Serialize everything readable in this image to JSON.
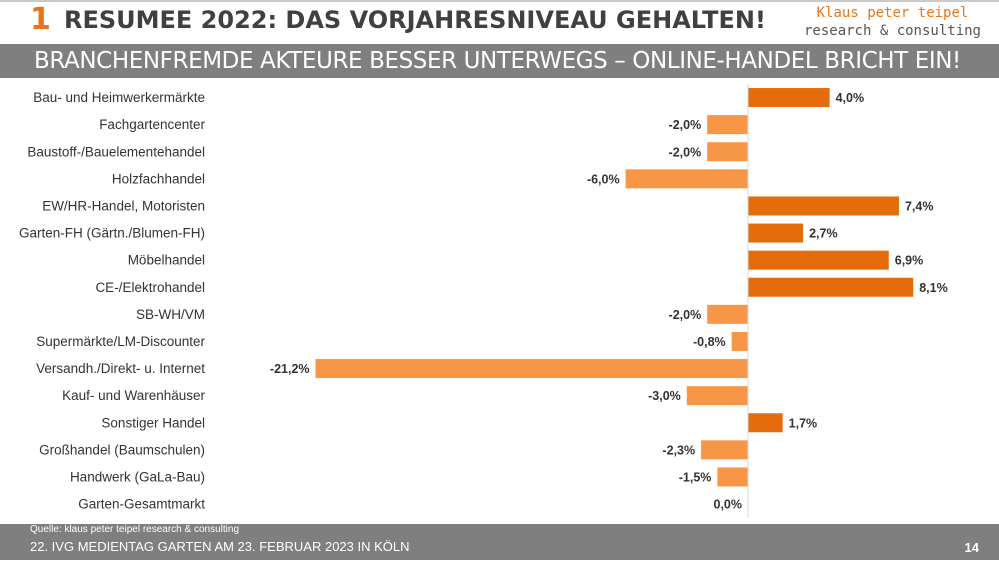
{
  "header": {
    "number": "1",
    "title": "RESUMEE 2022: DAS VORJAHRESNIVEAU GEHALTEN!",
    "logo_name": "Klaus peter teipel",
    "logo_tagline": "research & consulting"
  },
  "subtitle": "BRANCHENFREMDE AKTEURE BESSER UNTERWEGS – ONLINE-HANDEL BRICHT EIN!",
  "colors": {
    "positive": "#e46c0a",
    "negative": "#f79646",
    "axis": "#d9d9d9",
    "header_bar": "#7f7f7f",
    "accent": "#e8751a"
  },
  "chart_data": {
    "type": "bar",
    "orientation": "horizontal",
    "categories": [
      "Bau- und Heimwerkermärkte",
      "Fachgartencenter",
      "Baustoff-/Bauelementehandel",
      "Holzfachhandel",
      "EW/HR-Handel, Motoristen",
      "Garten-FH (Gärtn./Blumen-FH)",
      "Möbelhandel",
      "CE-/Elektrohandel",
      "SB-WH/VM",
      "Supermärkte/LM-Discounter",
      "Versandh./Direkt- u. Internet",
      "Kauf- und Warenhäuser",
      "Sonstiger Handel",
      "Großhandel (Baumschulen)",
      "Handwerk (GaLa-Bau)",
      "Garten-Gesamtmarkt"
    ],
    "values": [
      4.0,
      -2.0,
      -2.0,
      -6.0,
      7.4,
      2.7,
      6.9,
      8.1,
      -2.0,
      -0.8,
      -21.2,
      -3.0,
      1.7,
      -2.3,
      -1.5,
      0.0
    ],
    "labels": [
      "4,0%",
      "-2,0%",
      "-2,0%",
      "-6,0%",
      "7,4%",
      "2,7%",
      "6,9%",
      "8,1%",
      "-2,0%",
      "-0,8%",
      "-21,2%",
      "-3,0%",
      "1,7%",
      "-2,3%",
      "-1,5%",
      "0,0%"
    ],
    "title": "",
    "xlabel": "",
    "ylabel": "",
    "grid": false,
    "legend": "none"
  },
  "footer": {
    "source": "Quelle: klaus peter teipel research & consulting",
    "event": "22. IVG MEDIENTAG GARTEN AM 23. FEBRUAR 2023 IN KÖLN",
    "page": "14"
  }
}
